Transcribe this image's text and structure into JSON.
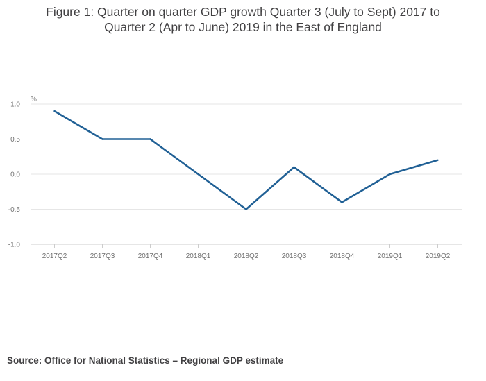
{
  "title_lines": [
    "Figure 1: Quarter on quarter GDP growth Quarter 3 (July to Sept) 2017 to",
    "Quarter 2 (Apr to June) 2019 in the East of England"
  ],
  "source": "Source: Office for National Statistics – Regional GDP estimate",
  "chart_data": {
    "type": "line",
    "title": "Figure 1: Quarter on quarter GDP growth Quarter 3 (July to Sept) 2017 to Quarter 2 (Apr to June) 2019 in the East of England",
    "ylabel": "%",
    "xlabel": "",
    "categories": [
      "2017Q2",
      "2017Q3",
      "2017Q4",
      "2018Q1",
      "2018Q2",
      "2018Q3",
      "2018Q4",
      "2019Q1",
      "2019Q2"
    ],
    "series": [
      {
        "name": "East of England",
        "values": [
          0.9,
          0.5,
          0.5,
          0.0,
          -0.5,
          0.1,
          -0.4,
          0.0,
          0.2
        ]
      }
    ],
    "ylim": [
      -1.0,
      1.0
    ],
    "yticks": [
      1.0,
      0.5,
      0.0,
      -0.5,
      -1.0
    ],
    "ytick_labels": [
      "1.0",
      "0.5",
      "0.0",
      "-0.5",
      "-1.0"
    ],
    "grid": true,
    "legend": "none",
    "color": "#206095"
  }
}
